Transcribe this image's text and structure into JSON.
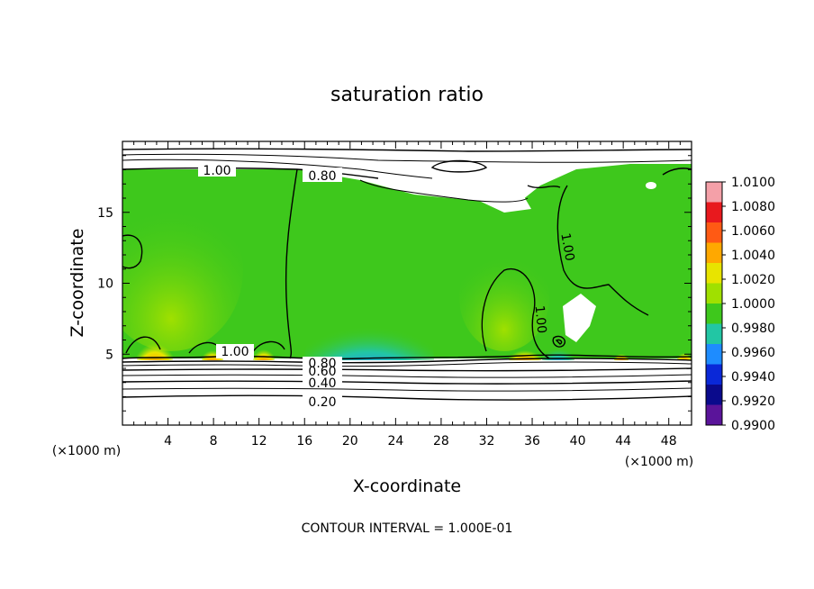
{
  "chart_data": {
    "type": "heatmap",
    "title": "saturation ratio",
    "xlabel": "X-coordinate",
    "ylabel": "Z-coordinate",
    "x_unit": "(×1000 m)",
    "z_unit": "(×1000 m)",
    "xlim": [
      0,
      50
    ],
    "ylim": [
      0,
      20
    ],
    "x_ticks": [
      "4",
      "8",
      "12",
      "16",
      "20",
      "24",
      "28",
      "32",
      "36",
      "40",
      "44",
      "48"
    ],
    "y_ticks": [
      "5",
      "10",
      "15"
    ],
    "colorbar": {
      "labels": [
        "1.0100",
        "1.0080",
        "1.0060",
        "1.0040",
        "1.0020",
        "1.0000",
        "0.9980",
        "0.9960",
        "0.9940",
        "0.9920",
        "0.9900"
      ],
      "colors": [
        "#f4a0a8",
        "#e8191e",
        "#ff5a14",
        "#ffa800",
        "#e8e400",
        "#a0e000",
        "#3ec81c",
        "#22c6a4",
        "#1e8cff",
        "#0a28d8",
        "#0a0a8c",
        "#5a149a"
      ]
    },
    "contour_labels": [
      "1.00",
      "0.80",
      "1.00",
      "1.00",
      "1.00",
      "0.80",
      "0.60",
      "0.40",
      "0.20"
    ],
    "contour_interval_text": "CONTOUR INTERVAL = 1.000E-01",
    "grid": false
  }
}
